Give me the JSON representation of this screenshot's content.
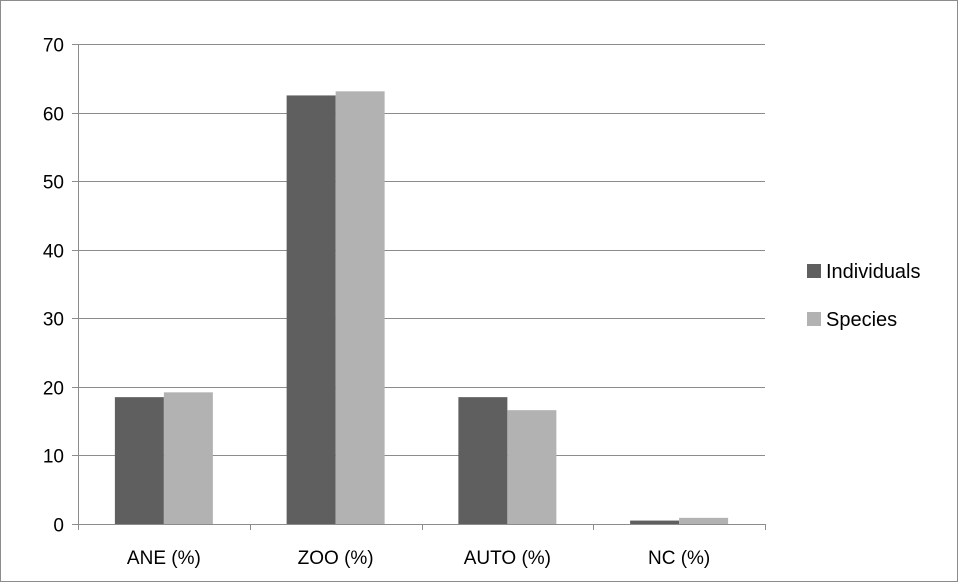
{
  "chart_data": {
    "type": "bar",
    "title": "",
    "xlabel": "",
    "ylabel": "",
    "categories": [
      "ANE (%)",
      "ZOO (%)",
      "AUTO (%)",
      "NC (%)"
    ],
    "series": [
      {
        "name": "Individuals",
        "color": "#5f5f5f",
        "values": [
          18.5,
          62.5,
          18.5,
          0.5
        ]
      },
      {
        "name": "Species",
        "color": "#b2b2b2",
        "values": [
          19.2,
          63.1,
          16.6,
          0.9
        ]
      }
    ],
    "ylim": [
      0,
      70
    ],
    "yticks": [
      0,
      10,
      20,
      30,
      40,
      50,
      60,
      70
    ],
    "grid": true,
    "legend_position": "right"
  }
}
